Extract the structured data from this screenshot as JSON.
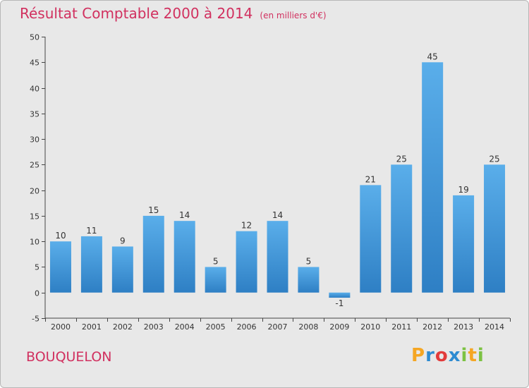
{
  "title": "Résultat Comptable 2000 à 2014",
  "unit": "(en milliers d'€)",
  "town": "BOUQUELON",
  "logo": {
    "text": "Proxiti"
  },
  "colors": {
    "bar_top": "#5aaeea",
    "bar_bottom": "#2e7fc4",
    "title": "#d1305f"
  },
  "chart_data": {
    "type": "bar",
    "title": "Résultat Comptable 2000 à 2014",
    "ylabel": "",
    "xlabel": "",
    "categories": [
      "2000",
      "2001",
      "2002",
      "2003",
      "2004",
      "2005",
      "2006",
      "2007",
      "2008",
      "2009",
      "2010",
      "2011",
      "2012",
      "2013",
      "2014"
    ],
    "values": [
      10,
      11,
      9,
      15,
      14,
      5,
      12,
      14,
      5,
      -1,
      21,
      25,
      45,
      19,
      25
    ],
    "ylim": [
      -5,
      50
    ],
    "yticks": [
      -5,
      0,
      5,
      10,
      15,
      20,
      25,
      30,
      35,
      40,
      45,
      50
    ],
    "grid": false
  }
}
